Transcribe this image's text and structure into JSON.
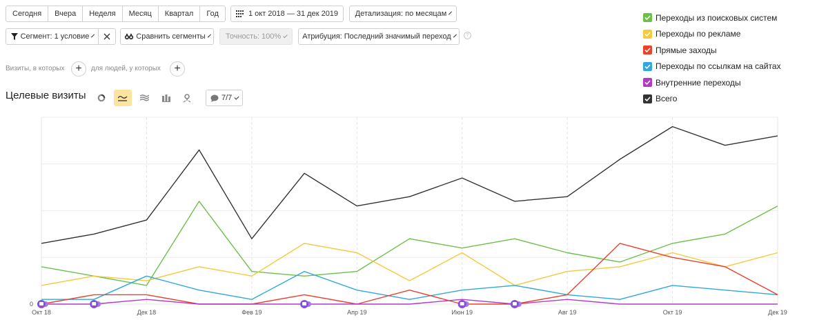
{
  "periods": [
    "Сегодня",
    "Вчера",
    "Неделя",
    "Месяц",
    "Квартал",
    "Год"
  ],
  "date_range": "1 окт 2018 — 31 дек 2019",
  "detail": "Детализация: по месяцам",
  "segment": "Сегмент: 1 условие",
  "compare": "Сравнить сегменты",
  "accuracy": "Точность: 100%",
  "attribution": "Атрибуция: Последний значимый переход",
  "help_mark": "?",
  "visits_label": "Визиты, в которых",
  "people_label": "для людей, у которых",
  "add_symbol": "+",
  "chart_title": "Целевые визиты",
  "notes_count": "7/7",
  "legend": [
    {
      "label": "Переходы из поисковых систем",
      "color": "#6cc04a"
    },
    {
      "label": "Переходы по рекламе",
      "color": "#f5c93b"
    },
    {
      "label": "Прямые заходы",
      "color": "#e8412c"
    },
    {
      "label": "Переходы по ссылкам на сайтах",
      "color": "#2ea8dd"
    },
    {
      "label": "Внутренние переходы",
      "color": "#b23bc6"
    },
    {
      "label": "Всего",
      "color": "#333333"
    }
  ],
  "chart_data": {
    "type": "line",
    "x": [
      "окт 2018",
      "ноя 2018",
      "дек 2018",
      "янв 2019",
      "фев 2019",
      "мар 2019",
      "апр 2019",
      "май 2019",
      "июн 2019",
      "июл 2019",
      "авг 2019",
      "сен 2019",
      "окт 2019",
      "ноя 2019",
      "дек 2019"
    ],
    "tick_labels": [
      "Окт 18",
      "Дек 18",
      "Фев 19",
      "Апр 19",
      "Июн 19",
      "Авг 19",
      "Окт 19",
      "Дек 19"
    ],
    "tick_indices": [
      0,
      2,
      4,
      6,
      8,
      10,
      12,
      14
    ],
    "y_zero_label": "0",
    "ylim": [
      0,
      40
    ],
    "grid": true,
    "series": [
      {
        "name": "Всего",
        "color": "#333333",
        "values": [
          13,
          15,
          18,
          33,
          14,
          28,
          21,
          23,
          27,
          22,
          23,
          31,
          38,
          34,
          36
        ]
      },
      {
        "name": "Переходы из поисковых систем",
        "color": "#6cc04a",
        "values": [
          8,
          6,
          4,
          22,
          7,
          6,
          7,
          14,
          12,
          14,
          11,
          9,
          13,
          15,
          21
        ]
      },
      {
        "name": "Переходы по рекламе",
        "color": "#f5c93b",
        "values": [
          4,
          6,
          5,
          8,
          6,
          13,
          11,
          5,
          11,
          4,
          7,
          8,
          11,
          8,
          11
        ]
      },
      {
        "name": "Переходы по ссылкам на сайтах",
        "color": "#2ea8dd",
        "values": [
          1,
          1,
          6,
          3,
          1,
          7,
          3,
          1,
          3,
          4,
          2,
          1,
          4,
          3,
          2
        ]
      },
      {
        "name": "Прямые заходы",
        "color": "#e8412c",
        "values": [
          0,
          2,
          2,
          0,
          0,
          2,
          0,
          3,
          0,
          0,
          2,
          13,
          10,
          8,
          2
        ]
      },
      {
        "name": "Внутренние переходы",
        "color": "#b23bc6",
        "values": [
          0,
          0,
          1,
          0,
          0,
          0,
          0,
          0,
          1,
          0,
          1,
          0,
          0,
          0,
          0
        ]
      }
    ],
    "annotation_markers": [
      0,
      1,
      5,
      8,
      9
    ]
  }
}
